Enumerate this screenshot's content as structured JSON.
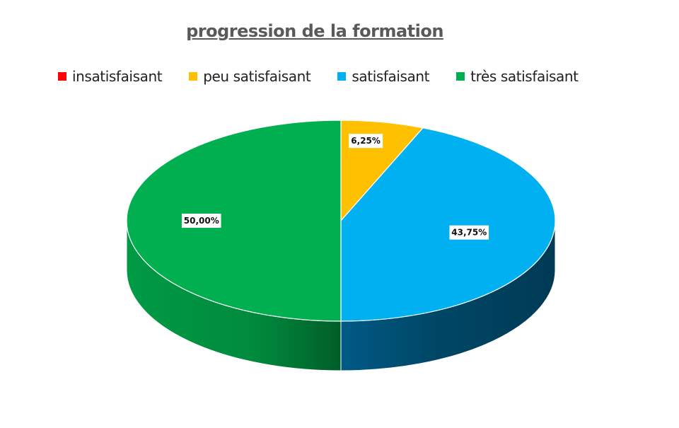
{
  "chart_data": {
    "type": "pie",
    "title": "progression de la formation",
    "categories": [
      "insatisfaisant",
      "peu satisfaisant",
      "satisfaisant",
      "très satisfaisant"
    ],
    "values": [
      0,
      6.25,
      43.75,
      50.0
    ],
    "data_labels": [
      "",
      "6,25%",
      "43,75%",
      "50,00%"
    ],
    "colors": [
      "#ff0000",
      "#ffc000",
      "#00b0f0",
      "#00b050"
    ],
    "legend_position": "top",
    "style": "3d"
  }
}
